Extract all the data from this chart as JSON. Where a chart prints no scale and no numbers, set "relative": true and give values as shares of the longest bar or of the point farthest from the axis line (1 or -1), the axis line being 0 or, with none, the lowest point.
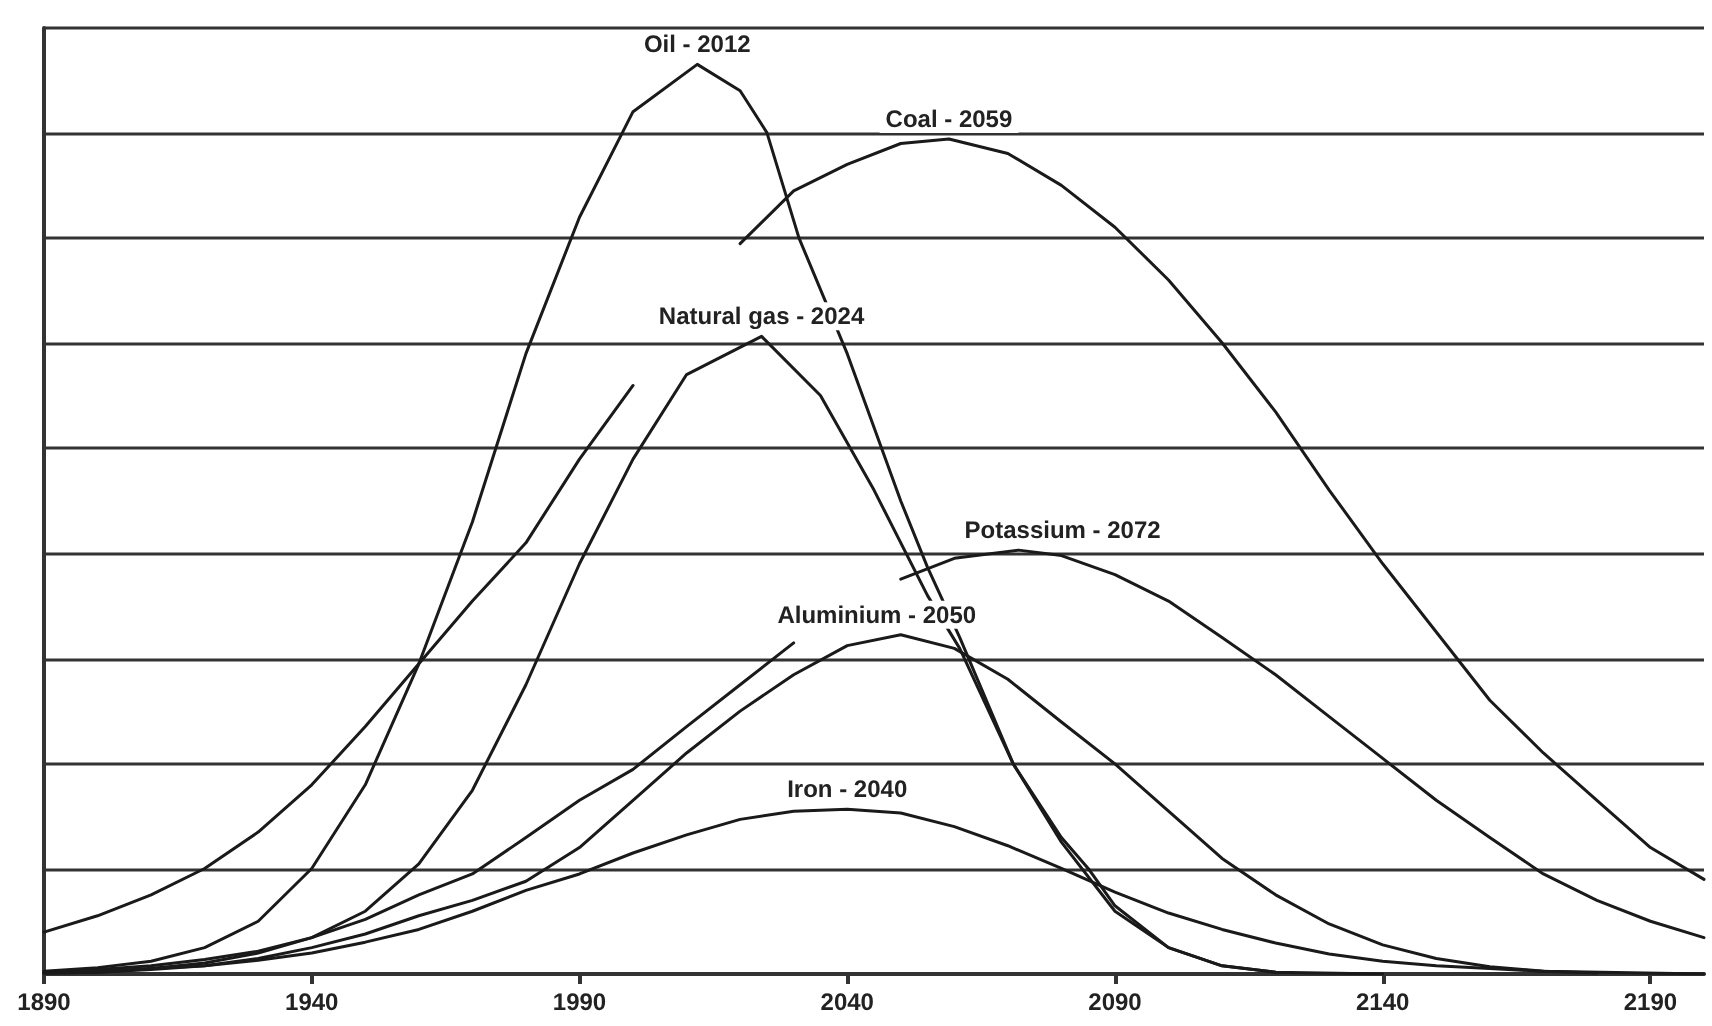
{
  "chart_data": {
    "type": "line",
    "relative": true,
    "grid": "y",
    "marker": "none",
    "line_style": "solid",
    "xlim": [
      1890,
      2200
    ],
    "xticks": [
      1890,
      1940,
      1990,
      2040,
      2090,
      2140,
      2190
    ],
    "series": [
      {
        "name": "Oil - 2012",
        "color": "#1a1a1a",
        "x": [
          1890,
          1900,
          1910,
          1920,
          1930,
          1940,
          1950,
          1960,
          1970,
          1980,
          1990,
          2000,
          2012,
          2020,
          2025,
          2031,
          2040,
          2050,
          2055,
          2061,
          2071,
          2080,
          2085,
          2090,
          2100,
          2110,
          2120,
          2140
        ],
        "values": [
          0.003,
          0.007,
          0.014,
          0.029,
          0.058,
          0.116,
          0.208,
          0.341,
          0.497,
          0.682,
          0.832,
          0.948,
          1,
          0.971,
          0.925,
          0.809,
          0.682,
          0.52,
          0.447,
          0.37,
          0.231,
          0.15,
          0.116,
          0.075,
          0.029,
          0.009,
          0.002,
          0
        ]
      },
      {
        "name": "Coal - 2059",
        "color": "#1a1a1a",
        "x": [
          1890,
          1900,
          1910,
          1920,
          1930,
          1940,
          1950,
          1960,
          1970,
          1980,
          1990,
          2000,
          2010,
          2020,
          2030,
          2040,
          2050,
          2059,
          2070,
          2080,
          2090,
          2100,
          2110,
          2120,
          2130,
          2140,
          2150,
          2160,
          2170,
          2180,
          2190,
          2200
        ],
        "values": [
          0.046,
          0.064,
          0.087,
          0.116,
          0.156,
          0.208,
          0.272,
          0.341,
          0.41,
          0.474,
          0.566,
          0.647,
          null,
          0.803,
          0.861,
          0.89,
          0.913,
          0.918,
          0.902,
          0.867,
          0.821,
          0.763,
          0.694,
          0.618,
          0.532,
          0.451,
          0.376,
          0.301,
          0.243,
          0.191,
          0.139,
          0.104
        ]
      },
      {
        "name": "Natural gas - 2024",
        "color": "#1a1a1a",
        "x": [
          1890,
          1900,
          1910,
          1920,
          1930,
          1940,
          1950,
          1960,
          1970,
          1980,
          1990,
          2000,
          2010,
          2024,
          2035,
          2045,
          2055,
          2061,
          2071,
          2080,
          2090,
          2100,
          2110,
          2120
        ],
        "values": [
          0.001,
          0.002,
          0.006,
          0.012,
          0.023,
          0.04,
          0.069,
          0.121,
          0.202,
          0.318,
          0.451,
          0.566,
          0.659,
          0.701,
          0.636,
          0.532,
          0.416,
          0.358,
          0.231,
          0.145,
          0.069,
          0.029,
          0.009,
          0.002
        ]
      },
      {
        "name": "Potassium - 2072",
        "color": "#1a1a1a",
        "x": [
          1890,
          1900,
          1910,
          1920,
          1930,
          1940,
          1950,
          1960,
          1970,
          1980,
          1990,
          2000,
          2010,
          2020,
          2030,
          2040,
          2050,
          2060,
          2072,
          2080,
          2090,
          2100,
          2110,
          2120,
          2130,
          2140,
          2150,
          2160,
          2170,
          2180,
          2190,
          2200
        ],
        "values": [
          0.002,
          0.005,
          0.009,
          0.016,
          0.025,
          0.04,
          0.06,
          0.087,
          0.11,
          0.15,
          0.191,
          0.225,
          0.272,
          0.318,
          0.364,
          null,
          0.434,
          0.457,
          0.466,
          0.46,
          0.439,
          0.41,
          0.37,
          0.329,
          0.283,
          0.237,
          0.191,
          0.15,
          0.11,
          0.081,
          0.058,
          0.04
        ]
      },
      {
        "name": "Aluminium - 2050",
        "color": "#1a1a1a",
        "x": [
          1890,
          1900,
          1910,
          1920,
          1930,
          1940,
          1950,
          1960,
          1970,
          1980,
          1990,
          2000,
          2010,
          2020,
          2030,
          2040,
          2050,
          2060,
          2070,
          2080,
          2090,
          2100,
          2110,
          2120,
          2130,
          2140,
          2150,
          2160,
          2170,
          2200
        ],
        "values": [
          0.001,
          0.002,
          0.005,
          0.009,
          0.017,
          0.029,
          0.044,
          0.064,
          0.081,
          0.102,
          0.139,
          0.191,
          0.243,
          0.289,
          0.329,
          0.361,
          0.373,
          0.358,
          0.324,
          0.277,
          0.231,
          0.179,
          0.127,
          0.087,
          0.055,
          0.032,
          0.017,
          0.008,
          0.003,
          0
        ]
      },
      {
        "name": "Iron - 2040",
        "color": "#1a1a1a",
        "x": [
          1890,
          1900,
          1910,
          1920,
          1930,
          1940,
          1950,
          1960,
          1970,
          1980,
          1990,
          2000,
          2010,
          2020,
          2030,
          2040,
          2050,
          2060,
          2070,
          2080,
          2090,
          2100,
          2110,
          2120,
          2130,
          2140,
          2150,
          2160,
          2170,
          2180
        ],
        "values": [
          0.001,
          0.003,
          0.006,
          0.009,
          0.015,
          0.023,
          0.035,
          0.049,
          0.069,
          0.092,
          0.11,
          0.133,
          0.153,
          0.17,
          0.179,
          0.181,
          0.177,
          0.162,
          0.141,
          0.116,
          0.09,
          0.067,
          0.049,
          0.034,
          0.022,
          0.014,
          0.009,
          0.006,
          0.003,
          0.001
        ]
      }
    ]
  }
}
